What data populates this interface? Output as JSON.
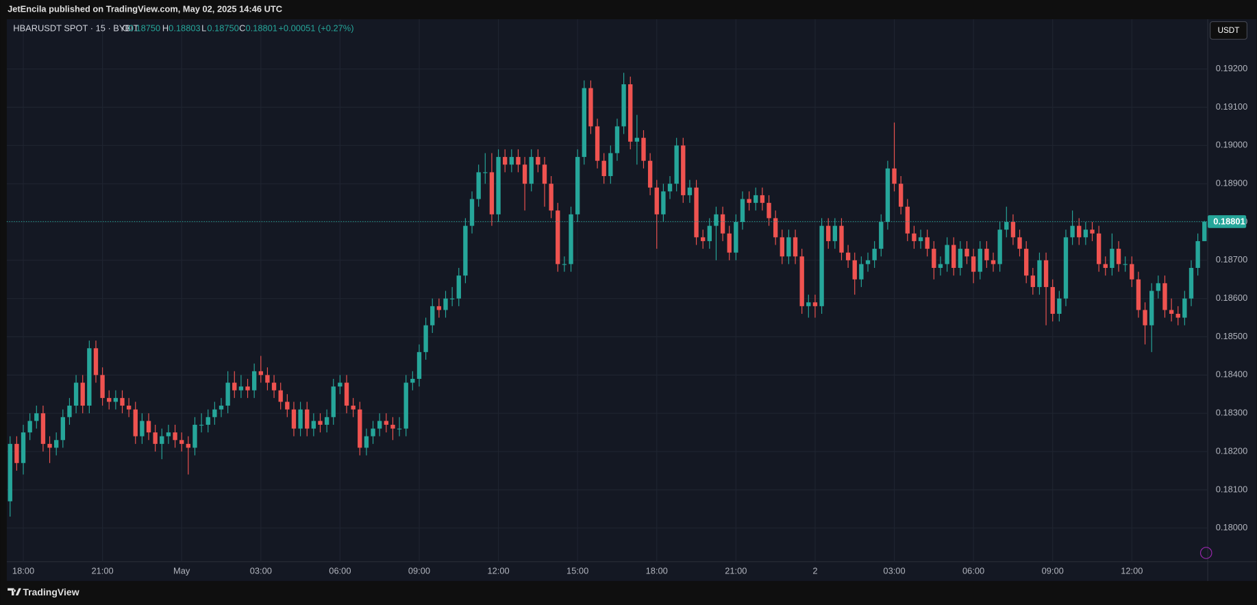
{
  "header": {
    "published": "JetEncila published on TradingView.com, May 02, 2025 14:46 UTC",
    "symbol": "HBARUSDT SPOT · 15 · BYBIT",
    "o_label": "O",
    "o_value": "0.18750",
    "h_label": "H",
    "h_value": "0.18803",
    "l_label": "L",
    "l_value": "0.18750",
    "c_label": "C",
    "c_value": "0.18801",
    "change": "+0.00051 (+0.27%)",
    "currency": "USDT",
    "brand": "TradingView"
  },
  "chart_data": {
    "type": "candlestick",
    "up_color": "#26a69a",
    "down_color": "#ef5350",
    "grid": true,
    "last_price": {
      "value": 0.18801,
      "label": "0.18801"
    },
    "xlim": [
      -0.5,
      181.5
    ],
    "xticks": [
      {
        "value": 2,
        "label": "18:00"
      },
      {
        "value": 14,
        "label": "21:00"
      },
      {
        "value": 26,
        "label": "May"
      },
      {
        "value": 38,
        "label": "03:00"
      },
      {
        "value": 50,
        "label": "06:00"
      },
      {
        "value": 62,
        "label": "09:00"
      },
      {
        "value": 74,
        "label": "12:00"
      },
      {
        "value": 86,
        "label": "15:00"
      },
      {
        "value": 98,
        "label": "18:00"
      },
      {
        "value": 110,
        "label": "21:00"
      },
      {
        "value": 122,
        "label": "2"
      },
      {
        "value": 134,
        "label": "03:00"
      },
      {
        "value": 146,
        "label": "06:00"
      },
      {
        "value": 158,
        "label": "09:00"
      },
      {
        "value": 170,
        "label": "12:00"
      }
    ],
    "ylim": [
      0.17912,
      0.1933
    ],
    "yticks": [
      {
        "value": 0.18,
        "label": "0.18000"
      },
      {
        "value": 0.181,
        "label": "0.18100"
      },
      {
        "value": 0.182,
        "label": "0.18200"
      },
      {
        "value": 0.183,
        "label": "0.18300"
      },
      {
        "value": 0.184,
        "label": "0.18400"
      },
      {
        "value": 0.185,
        "label": "0.18500"
      },
      {
        "value": 0.186,
        "label": "0.18600"
      },
      {
        "value": 0.187,
        "label": "0.18700"
      },
      {
        "value": 0.188,
        "label": "0.18800"
      },
      {
        "value": 0.189,
        "label": "0.18900"
      },
      {
        "value": 0.19,
        "label": "0.19000"
      },
      {
        "value": 0.191,
        "label": "0.19100"
      },
      {
        "value": 0.192,
        "label": "0.19200"
      }
    ],
    "ohlc": [
      [
        0.1807,
        0.1824,
        0.1803,
        0.1822
      ],
      [
        0.1822,
        0.1824,
        0.1815,
        0.1817
      ],
      [
        0.1817,
        0.1827,
        0.1814,
        0.1825
      ],
      [
        0.1825,
        0.183,
        0.1823,
        0.1828
      ],
      [
        0.1828,
        0.1832,
        0.1826,
        0.183
      ],
      [
        0.183,
        0.1832,
        0.182,
        0.1822
      ],
      [
        0.1822,
        0.1824,
        0.1817,
        0.1821
      ],
      [
        0.1821,
        0.1825,
        0.1819,
        0.1823
      ],
      [
        0.1823,
        0.1831,
        0.1821,
        0.1829
      ],
      [
        0.1829,
        0.1834,
        0.1827,
        0.1832
      ],
      [
        0.1832,
        0.184,
        0.183,
        0.1838
      ],
      [
        0.1838,
        0.184,
        0.183,
        0.1832
      ],
      [
        0.1832,
        0.1849,
        0.183,
        0.1847
      ],
      [
        0.1847,
        0.1849,
        0.1838,
        0.184
      ],
      [
        0.184,
        0.1842,
        0.1832,
        0.1834
      ],
      [
        0.1834,
        0.1836,
        0.1831,
        0.1833
      ],
      [
        0.1833,
        0.1836,
        0.1831,
        0.1834
      ],
      [
        0.1834,
        0.1836,
        0.183,
        0.1832
      ],
      [
        0.1832,
        0.1834,
        0.1829,
        0.1831
      ],
      [
        0.1831,
        0.1833,
        0.1822,
        0.1824
      ],
      [
        0.1824,
        0.183,
        0.1822,
        0.1828
      ],
      [
        0.1828,
        0.183,
        0.1823,
        0.1825
      ],
      [
        0.1825,
        0.1827,
        0.182,
        0.1822
      ],
      [
        0.1822,
        0.1826,
        0.1818,
        0.1824
      ],
      [
        0.1824,
        0.1827,
        0.1822,
        0.1825
      ],
      [
        0.1825,
        0.1827,
        0.1821,
        0.1823
      ],
      [
        0.1823,
        0.1825,
        0.182,
        0.1822
      ],
      [
        0.1822,
        0.1824,
        0.1814,
        0.1821
      ],
      [
        0.1821,
        0.1829,
        0.1819,
        0.1827
      ],
      [
        0.1827,
        0.183,
        0.1825,
        0.1827
      ],
      [
        0.1827,
        0.1831,
        0.1825,
        0.1829
      ],
      [
        0.1829,
        0.1833,
        0.1827,
        0.1831
      ],
      [
        0.1831,
        0.1834,
        0.1829,
        0.1832
      ],
      [
        0.1832,
        0.1841,
        0.183,
        0.1838
      ],
      [
        0.1838,
        0.1841,
        0.1834,
        0.1836
      ],
      [
        0.1836,
        0.184,
        0.1834,
        0.1837
      ],
      [
        0.1837,
        0.1839,
        0.1834,
        0.1836
      ],
      [
        0.1836,
        0.1843,
        0.1834,
        0.1841
      ],
      [
        0.1841,
        0.1845,
        0.1838,
        0.184
      ],
      [
        0.184,
        0.1842,
        0.1836,
        0.1838
      ],
      [
        0.1838,
        0.184,
        0.1834,
        0.1836
      ],
      [
        0.1836,
        0.1838,
        0.1831,
        0.1833
      ],
      [
        0.1833,
        0.1835,
        0.1829,
        0.1831
      ],
      [
        0.1831,
        0.1833,
        0.1824,
        0.1826
      ],
      [
        0.1826,
        0.1833,
        0.1824,
        0.1831
      ],
      [
        0.1831,
        0.1833,
        0.1824,
        0.1826
      ],
      [
        0.1826,
        0.183,
        0.1824,
        0.1828
      ],
      [
        0.1828,
        0.183,
        0.1825,
        0.1827
      ],
      [
        0.1827,
        0.1831,
        0.1825,
        0.1829
      ],
      [
        0.1829,
        0.1839,
        0.1827,
        0.1837
      ],
      [
        0.1837,
        0.184,
        0.1835,
        0.1838
      ],
      [
        0.1838,
        0.184,
        0.183,
        0.1832
      ],
      [
        0.1832,
        0.1834,
        0.1829,
        0.1831
      ],
      [
        0.1831,
        0.1833,
        0.1819,
        0.1821
      ],
      [
        0.1821,
        0.1826,
        0.1819,
        0.1824
      ],
      [
        0.1824,
        0.1828,
        0.1822,
        0.1826
      ],
      [
        0.1826,
        0.183,
        0.1824,
        0.1828
      ],
      [
        0.1828,
        0.183,
        0.1825,
        0.1827
      ],
      [
        0.1827,
        0.1829,
        0.1823,
        0.1826
      ],
      [
        0.1826,
        0.1829,
        0.1824,
        0.1826
      ],
      [
        0.1826,
        0.184,
        0.1824,
        0.1838
      ],
      [
        0.1838,
        0.1841,
        0.1836,
        0.1839
      ],
      [
        0.1839,
        0.1848,
        0.1837,
        0.1846
      ],
      [
        0.1846,
        0.1855,
        0.1844,
        0.1853
      ],
      [
        0.1853,
        0.186,
        0.1851,
        0.1858
      ],
      [
        0.1858,
        0.186,
        0.1855,
        0.1857
      ],
      [
        0.1857,
        0.1862,
        0.1855,
        0.186
      ],
      [
        0.186,
        0.1863,
        0.1858,
        0.186
      ],
      [
        0.186,
        0.1868,
        0.1858,
        0.1866
      ],
      [
        0.1866,
        0.1881,
        0.1864,
        0.1879
      ],
      [
        0.1879,
        0.1888,
        0.1877,
        0.1886
      ],
      [
        0.1886,
        0.1895,
        0.1884,
        0.1893
      ],
      [
        0.1893,
        0.1898,
        0.189,
        0.1893
      ],
      [
        0.1893,
        0.1898,
        0.1879,
        0.1882
      ],
      [
        0.1882,
        0.1899,
        0.188,
        0.1897
      ],
      [
        0.1897,
        0.1899,
        0.1893,
        0.1895
      ],
      [
        0.1895,
        0.1899,
        0.1893,
        0.1897
      ],
      [
        0.1897,
        0.1899,
        0.1893,
        0.1895
      ],
      [
        0.1895,
        0.1897,
        0.1883,
        0.189
      ],
      [
        0.189,
        0.1899,
        0.1888,
        0.1897
      ],
      [
        0.1897,
        0.1899,
        0.1893,
        0.1895
      ],
      [
        0.1895,
        0.1897,
        0.1884,
        0.189
      ],
      [
        0.189,
        0.1892,
        0.1881,
        0.1883
      ],
      [
        0.1883,
        0.1885,
        0.1867,
        0.1869
      ],
      [
        0.1869,
        0.1871,
        0.1867,
        0.1869
      ],
      [
        0.1869,
        0.1884,
        0.1867,
        0.1882
      ],
      [
        0.1882,
        0.1899,
        0.188,
        0.1897
      ],
      [
        0.1897,
        0.1917,
        0.1895,
        0.1915
      ],
      [
        0.1915,
        0.1917,
        0.1903,
        0.1905
      ],
      [
        0.1905,
        0.1907,
        0.1894,
        0.1896
      ],
      [
        0.1896,
        0.1898,
        0.189,
        0.1892
      ],
      [
        0.1892,
        0.19,
        0.189,
        0.1898
      ],
      [
        0.1898,
        0.1907,
        0.1896,
        0.1905
      ],
      [
        0.1905,
        0.1919,
        0.1903,
        0.1916
      ],
      [
        0.1916,
        0.1918,
        0.1899,
        0.1901
      ],
      [
        0.1901,
        0.1908,
        0.1895,
        0.1902
      ],
      [
        0.1902,
        0.1904,
        0.1894,
        0.1896
      ],
      [
        0.1896,
        0.1898,
        0.1887,
        0.1889
      ],
      [
        0.1889,
        0.1891,
        0.1873,
        0.1882
      ],
      [
        0.1882,
        0.189,
        0.188,
        0.1888
      ],
      [
        0.1888,
        0.1892,
        0.1886,
        0.189
      ],
      [
        0.189,
        0.1902,
        0.1888,
        0.19
      ],
      [
        0.19,
        0.1902,
        0.1885,
        0.1887
      ],
      [
        0.1887,
        0.1891,
        0.1885,
        0.1889
      ],
      [
        0.1889,
        0.1891,
        0.1874,
        0.1876
      ],
      [
        0.1876,
        0.1878,
        0.1873,
        0.1875
      ],
      [
        0.1875,
        0.1881,
        0.1873,
        0.1879
      ],
      [
        0.1879,
        0.1884,
        0.187,
        0.1882
      ],
      [
        0.1882,
        0.1884,
        0.1875,
        0.1877
      ],
      [
        0.1877,
        0.1879,
        0.187,
        0.1872
      ],
      [
        0.1872,
        0.1882,
        0.187,
        0.188
      ],
      [
        0.188,
        0.1888,
        0.1878,
        0.1886
      ],
      [
        0.1886,
        0.1888,
        0.1883,
        0.1885
      ],
      [
        0.1885,
        0.1889,
        0.1883,
        0.1887
      ],
      [
        0.1887,
        0.1889,
        0.1883,
        0.1885
      ],
      [
        0.1885,
        0.1887,
        0.1879,
        0.1881
      ],
      [
        0.1881,
        0.1883,
        0.1874,
        0.1876
      ],
      [
        0.1876,
        0.1878,
        0.1869,
        0.1871
      ],
      [
        0.1871,
        0.1878,
        0.1869,
        0.1876
      ],
      [
        0.1876,
        0.1878,
        0.1869,
        0.1871
      ],
      [
        0.1871,
        0.1873,
        0.1856,
        0.1858
      ],
      [
        0.1858,
        0.1861,
        0.1855,
        0.1859
      ],
      [
        0.1859,
        0.1861,
        0.1855,
        0.1858
      ],
      [
        0.1858,
        0.1881,
        0.1856,
        0.1879
      ],
      [
        0.1879,
        0.1881,
        0.1873,
        0.1875
      ],
      [
        0.1875,
        0.1881,
        0.1873,
        0.1879
      ],
      [
        0.1879,
        0.1881,
        0.187,
        0.1872
      ],
      [
        0.1872,
        0.1874,
        0.1868,
        0.187
      ],
      [
        0.187,
        0.1872,
        0.1861,
        0.1865
      ],
      [
        0.1865,
        0.1871,
        0.1863,
        0.1869
      ],
      [
        0.1869,
        0.1872,
        0.1867,
        0.187
      ],
      [
        0.187,
        0.1875,
        0.1868,
        0.1873
      ],
      [
        0.1873,
        0.1882,
        0.1871,
        0.188
      ],
      [
        0.188,
        0.1896,
        0.1878,
        0.1894
      ],
      [
        0.1894,
        0.1906,
        0.1888,
        0.189
      ],
      [
        0.189,
        0.1892,
        0.1882,
        0.1884
      ],
      [
        0.1884,
        0.1886,
        0.1875,
        0.1877
      ],
      [
        0.1877,
        0.1879,
        0.1873,
        0.1875
      ],
      [
        0.1875,
        0.1878,
        0.1873,
        0.1876
      ],
      [
        0.1876,
        0.1878,
        0.1871,
        0.1873
      ],
      [
        0.1873,
        0.1875,
        0.1865,
        0.1868
      ],
      [
        0.1868,
        0.1871,
        0.1866,
        0.1869
      ],
      [
        0.1869,
        0.1876,
        0.1867,
        0.1874
      ],
      [
        0.1874,
        0.1876,
        0.1866,
        0.1868
      ],
      [
        0.1868,
        0.1875,
        0.1866,
        0.1873
      ],
      [
        0.1873,
        0.1875,
        0.1869,
        0.1871
      ],
      [
        0.1871,
        0.1873,
        0.1864,
        0.1867
      ],
      [
        0.1867,
        0.1875,
        0.1865,
        0.1873
      ],
      [
        0.1873,
        0.1875,
        0.1868,
        0.187
      ],
      [
        0.187,
        0.1872,
        0.1867,
        0.1869
      ],
      [
        0.1869,
        0.188,
        0.1867,
        0.1878
      ],
      [
        0.1878,
        0.1884,
        0.1876,
        0.188
      ],
      [
        0.188,
        0.1882,
        0.1874,
        0.1876
      ],
      [
        0.1876,
        0.1878,
        0.1871,
        0.1873
      ],
      [
        0.1873,
        0.1875,
        0.1864,
        0.1866
      ],
      [
        0.1866,
        0.1868,
        0.1861,
        0.1863
      ],
      [
        0.1863,
        0.1872,
        0.1861,
        0.187
      ],
      [
        0.187,
        0.1872,
        0.1853,
        0.1863
      ],
      [
        0.1863,
        0.1865,
        0.1854,
        0.1856
      ],
      [
        0.1856,
        0.1862,
        0.1854,
        0.186
      ],
      [
        0.186,
        0.1878,
        0.1858,
        0.1876
      ],
      [
        0.1876,
        0.1883,
        0.1874,
        0.1879
      ],
      [
        0.1879,
        0.1881,
        0.1874,
        0.1876
      ],
      [
        0.1876,
        0.188,
        0.1874,
        0.1878
      ],
      [
        0.1878,
        0.188,
        0.1875,
        0.1877
      ],
      [
        0.1877,
        0.1879,
        0.1867,
        0.1869
      ],
      [
        0.1869,
        0.1871,
        0.1866,
        0.1868
      ],
      [
        0.1868,
        0.1877,
        0.1866,
        0.1873
      ],
      [
        0.1873,
        0.1875,
        0.1867,
        0.1869
      ],
      [
        0.1869,
        0.1871,
        0.1867,
        0.1869
      ],
      [
        0.1869,
        0.1871,
        0.1863,
        0.1865
      ],
      [
        0.1865,
        0.1867,
        0.1855,
        0.1857
      ],
      [
        0.1857,
        0.1859,
        0.1848,
        0.1853
      ],
      [
        0.1853,
        0.1864,
        0.1846,
        0.1862
      ],
      [
        0.1862,
        0.1866,
        0.186,
        0.1864
      ],
      [
        0.1864,
        0.1866,
        0.1855,
        0.1857
      ],
      [
        0.1857,
        0.186,
        0.1854,
        0.1856
      ],
      [
        0.1856,
        0.1858,
        0.1853,
        0.1855
      ],
      [
        0.1855,
        0.1862,
        0.1853,
        0.186
      ],
      [
        0.186,
        0.187,
        0.1858,
        0.1868
      ],
      [
        0.1868,
        0.1877,
        0.1866,
        0.1875
      ],
      [
        0.1875,
        0.18803,
        0.1875,
        0.18801
      ]
    ]
  }
}
